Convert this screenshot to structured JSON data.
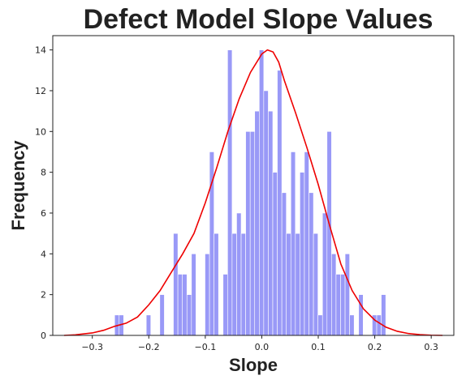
{
  "chart_data": {
    "type": "bar",
    "title": "Defect Model Slope Values",
    "xlabel": "Slope",
    "ylabel": "Frequency",
    "xlim": [
      -0.37,
      0.34
    ],
    "ylim": [
      0,
      14.7
    ],
    "xticks": [
      -0.3,
      -0.2,
      -0.1,
      0.0,
      0.1,
      0.2,
      0.3
    ],
    "xtick_labels": [
      "−0.3",
      "−0.2",
      "−0.1",
      "0.0",
      "0.1",
      "0.2",
      "0.3"
    ],
    "yticks": [
      0,
      2,
      4,
      6,
      8,
      10,
      12,
      14
    ],
    "ytick_labels": [
      "0",
      "2",
      "4",
      "6",
      "8",
      "10",
      "12",
      "14"
    ],
    "grid": false,
    "colors": {
      "bar": "#9999f7",
      "kde": "#ee0000"
    },
    "histogram": {
      "bins": [
        {
          "x0": -0.2605,
          "x1": -0.2525,
          "count": 1
        },
        {
          "x0": -0.2525,
          "x1": -0.2445,
          "count": 1
        },
        {
          "x0": -0.2045,
          "x1": -0.1965,
          "count": 1
        },
        {
          "x0": -0.1805,
          "x1": -0.1725,
          "count": 2
        },
        {
          "x0": -0.1565,
          "x1": -0.1485,
          "count": 5
        },
        {
          "x0": -0.1485,
          "x1": -0.1405,
          "count": 3
        },
        {
          "x0": -0.1405,
          "x1": -0.1325,
          "count": 3
        },
        {
          "x0": -0.1325,
          "x1": -0.1245,
          "count": 2
        },
        {
          "x0": -0.1245,
          "x1": -0.1165,
          "count": 4
        },
        {
          "x0": -0.1005,
          "x1": -0.0925,
          "count": 4
        },
        {
          "x0": -0.0925,
          "x1": -0.0845,
          "count": 9
        },
        {
          "x0": -0.0845,
          "x1": -0.0765,
          "count": 5
        },
        {
          "x0": -0.0685,
          "x1": -0.0605,
          "count": 3
        },
        {
          "x0": -0.0605,
          "x1": -0.0525,
          "count": 14
        },
        {
          "x0": -0.0525,
          "x1": -0.0445,
          "count": 5
        },
        {
          "x0": -0.0445,
          "x1": -0.0365,
          "count": 6
        },
        {
          "x0": -0.0365,
          "x1": -0.0285,
          "count": 5
        },
        {
          "x0": -0.0285,
          "x1": -0.0205,
          "count": 10
        },
        {
          "x0": -0.0205,
          "x1": -0.0125,
          "count": 10
        },
        {
          "x0": -0.0125,
          "x1": -0.0045,
          "count": 11
        },
        {
          "x0": -0.0045,
          "x1": 0.0035,
          "count": 14
        },
        {
          "x0": 0.0035,
          "x1": 0.0115,
          "count": 12
        },
        {
          "x0": 0.0115,
          "x1": 0.0195,
          "count": 11
        },
        {
          "x0": 0.0195,
          "x1": 0.0275,
          "count": 8
        },
        {
          "x0": 0.0275,
          "x1": 0.0355,
          "count": 13
        },
        {
          "x0": 0.0355,
          "x1": 0.0435,
          "count": 7
        },
        {
          "x0": 0.0435,
          "x1": 0.0515,
          "count": 5
        },
        {
          "x0": 0.0515,
          "x1": 0.0595,
          "count": 9
        },
        {
          "x0": 0.0595,
          "x1": 0.0675,
          "count": 5
        },
        {
          "x0": 0.0675,
          "x1": 0.0755,
          "count": 8
        },
        {
          "x0": 0.0755,
          "x1": 0.0835,
          "count": 9
        },
        {
          "x0": 0.0835,
          "x1": 0.0915,
          "count": 7
        },
        {
          "x0": 0.0915,
          "x1": 0.0995,
          "count": 5
        },
        {
          "x0": 0.0995,
          "x1": 0.1075,
          "count": 1
        },
        {
          "x0": 0.1075,
          "x1": 0.1155,
          "count": 6
        },
        {
          "x0": 0.1155,
          "x1": 0.1235,
          "count": 10
        },
        {
          "x0": 0.1235,
          "x1": 0.1315,
          "count": 4
        },
        {
          "x0": 0.1315,
          "x1": 0.1395,
          "count": 3
        },
        {
          "x0": 0.1395,
          "x1": 0.1475,
          "count": 3
        },
        {
          "x0": 0.1475,
          "x1": 0.1555,
          "count": 4
        },
        {
          "x0": 0.1555,
          "x1": 0.1635,
          "count": 1
        },
        {
          "x0": 0.1715,
          "x1": 0.1795,
          "count": 2
        },
        {
          "x0": 0.1955,
          "x1": 0.2035,
          "count": 1
        },
        {
          "x0": 0.2035,
          "x1": 0.2115,
          "count": 1
        },
        {
          "x0": 0.2115,
          "x1": 0.2195,
          "count": 2
        }
      ]
    },
    "kde": {
      "x": [
        -0.35,
        -0.33,
        -0.3,
        -0.28,
        -0.26,
        -0.24,
        -0.22,
        -0.2,
        -0.18,
        -0.16,
        -0.14,
        -0.12,
        -0.1,
        -0.08,
        -0.06,
        -0.04,
        -0.02,
        0.0,
        0.01,
        0.02,
        0.03,
        0.04,
        0.06,
        0.08,
        0.1,
        0.12,
        0.14,
        0.16,
        0.18,
        0.2,
        0.22,
        0.24,
        0.26,
        0.28,
        0.3,
        0.32
      ],
      "y": [
        0.0,
        0.03,
        0.12,
        0.25,
        0.45,
        0.6,
        0.9,
        1.5,
        2.2,
        3.1,
        4.0,
        5.0,
        6.5,
        8.2,
        10.0,
        11.6,
        12.9,
        13.8,
        14.0,
        13.9,
        13.4,
        12.5,
        10.9,
        9.2,
        7.4,
        5.4,
        3.5,
        2.2,
        1.3,
        0.75,
        0.4,
        0.2,
        0.09,
        0.04,
        0.01,
        0.0
      ]
    }
  }
}
